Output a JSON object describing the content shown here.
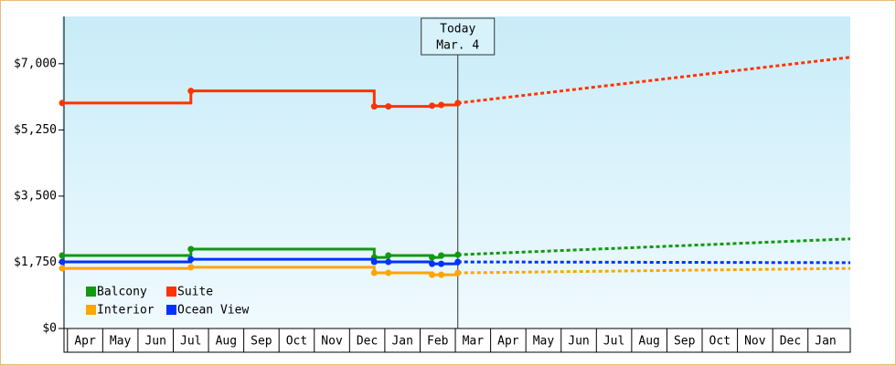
{
  "chart_data": {
    "type": "step-line",
    "xlim": [
      -0.15,
      22.2
    ],
    "ylim": [
      0,
      8250
    ],
    "yticks": [
      {
        "value": 0,
        "label": "$0"
      },
      {
        "value": 1750,
        "label": "$1,750"
      },
      {
        "value": 3500,
        "label": "$3,500"
      },
      {
        "value": 5250,
        "label": "$5,250"
      },
      {
        "value": 7000,
        "label": "$7,000"
      }
    ],
    "xticks": [
      {
        "value": 0.5,
        "label": "Apr"
      },
      {
        "value": 1.5,
        "label": "May"
      },
      {
        "value": 2.5,
        "label": "Jun"
      },
      {
        "value": 3.5,
        "label": "Jul"
      },
      {
        "value": 4.5,
        "label": "Aug"
      },
      {
        "value": 5.5,
        "label": "Sep"
      },
      {
        "value": 6.5,
        "label": "Oct"
      },
      {
        "value": 7.5,
        "label": "Nov"
      },
      {
        "value": 8.5,
        "label": "Dec"
      },
      {
        "value": 9.5,
        "label": "Jan"
      },
      {
        "value": 10.5,
        "label": "Feb"
      },
      {
        "value": 11.5,
        "label": "Mar"
      },
      {
        "value": 12.5,
        "label": "Apr"
      },
      {
        "value": 13.5,
        "label": "May"
      },
      {
        "value": 14.5,
        "label": "Jun"
      },
      {
        "value": 15.5,
        "label": "Jul"
      },
      {
        "value": 16.5,
        "label": "Aug"
      },
      {
        "value": 17.5,
        "label": "Sep"
      },
      {
        "value": 18.5,
        "label": "Oct"
      },
      {
        "value": 19.5,
        "label": "Nov"
      },
      {
        "value": 20.5,
        "label": "Dec"
      },
      {
        "value": 21.5,
        "label": "Jan"
      }
    ],
    "grid": false,
    "legend": "bottom-left",
    "annotation": {
      "lines": [
        "Today",
        "Mar. 4"
      ],
      "x": 11.07
    },
    "series": [
      {
        "name": "Balcony",
        "color": "#119911",
        "x": [
          -0.15,
          3.5,
          8.7,
          9.1,
          10.34,
          10.6,
          11.07
        ],
        "values": [
          1930,
          2100,
          1880,
          1930,
          1880,
          1930,
          1950
        ],
        "forecast": {
          "x": [
            11.07,
            22.2
          ],
          "values": [
            1950,
            2370
          ]
        }
      },
      {
        "name": "Suite",
        "color": "#ff3300",
        "x": [
          -0.15,
          3.5,
          8.7,
          9.1,
          10.34,
          10.6,
          11.07
        ],
        "values": [
          5960,
          6280,
          5870,
          5870,
          5890,
          5910,
          5960
        ],
        "forecast": {
          "x": [
            11.07,
            22.2
          ],
          "values": [
            5960,
            7170
          ]
        }
      },
      {
        "name": "Interior",
        "color": "#ffa500",
        "x": [
          -0.15,
          3.5,
          8.7,
          9.1,
          10.34,
          10.6,
          11.07
        ],
        "values": [
          1590,
          1620,
          1470,
          1470,
          1420,
          1420,
          1470
        ],
        "forecast": {
          "x": [
            11.07,
            22.2
          ],
          "values": [
            1470,
            1590
          ]
        }
      },
      {
        "name": "Ocean View",
        "color": "#0033ff",
        "x": [
          -0.15,
          3.5,
          8.7,
          9.1,
          10.34,
          10.6,
          11.07
        ],
        "values": [
          1760,
          1830,
          1760,
          1760,
          1710,
          1710,
          1760
        ],
        "forecast": {
          "x": [
            11.07,
            22.2
          ],
          "values": [
            1760,
            1740
          ]
        }
      }
    ]
  }
}
